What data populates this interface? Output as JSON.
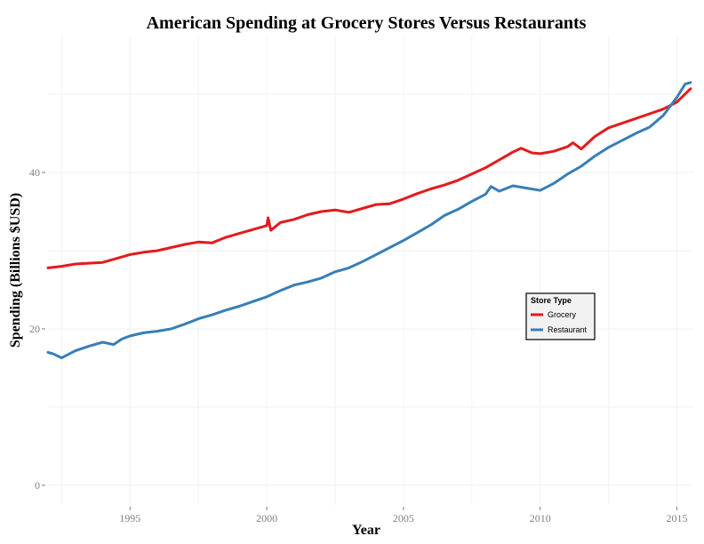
{
  "chart_data": {
    "type": "line",
    "title": "American Spending at Grocery Stores Versus Restaurants",
    "xlabel": "Year",
    "ylabel": "Spending (Billions $USD)",
    "xlim": [
      1992,
      2015.6
    ],
    "ylim": [
      -2.5,
      57.5
    ],
    "x_ticks": [
      1995,
      2000,
      2005,
      2010,
      2015
    ],
    "y_ticks": [
      0,
      20,
      40
    ],
    "grid": true,
    "legend": {
      "title": "Store Type",
      "placement": "right"
    },
    "series": [
      {
        "name": "Grocery",
        "color": "#e41a1c",
        "points": [
          [
            1992.0,
            27.8
          ],
          [
            1992.5,
            28.0
          ],
          [
            1993.0,
            28.3
          ],
          [
            1993.5,
            28.4
          ],
          [
            1994.0,
            28.5
          ],
          [
            1994.5,
            29.0
          ],
          [
            1995.0,
            29.5
          ],
          [
            1995.5,
            29.8
          ],
          [
            1996.0,
            30.0
          ],
          [
            1996.5,
            30.4
          ],
          [
            1997.0,
            30.8
          ],
          [
            1997.5,
            31.1
          ],
          [
            1998.0,
            31.0
          ],
          [
            1998.5,
            31.7
          ],
          [
            1999.0,
            32.2
          ],
          [
            1999.5,
            32.7
          ],
          [
            2000.0,
            33.2
          ],
          [
            2000.05,
            34.2
          ],
          [
            2000.15,
            32.6
          ],
          [
            2000.5,
            33.6
          ],
          [
            2001.0,
            34.0
          ],
          [
            2001.5,
            34.6
          ],
          [
            2002.0,
            35.0
          ],
          [
            2002.5,
            35.2
          ],
          [
            2003.0,
            34.9
          ],
          [
            2003.5,
            35.4
          ],
          [
            2004.0,
            35.9
          ],
          [
            2004.5,
            36.0
          ],
          [
            2005.0,
            36.6
          ],
          [
            2005.5,
            37.3
          ],
          [
            2006.0,
            37.9
          ],
          [
            2006.5,
            38.4
          ],
          [
            2007.0,
            39.0
          ],
          [
            2007.5,
            39.8
          ],
          [
            2008.0,
            40.6
          ],
          [
            2008.5,
            41.6
          ],
          [
            2009.0,
            42.6
          ],
          [
            2009.3,
            43.1
          ],
          [
            2009.7,
            42.5
          ],
          [
            2010.0,
            42.4
          ],
          [
            2010.5,
            42.7
          ],
          [
            2011.0,
            43.3
          ],
          [
            2011.2,
            43.8
          ],
          [
            2011.5,
            43.0
          ],
          [
            2012.0,
            44.6
          ],
          [
            2012.5,
            45.7
          ],
          [
            2013.0,
            46.3
          ],
          [
            2013.5,
            46.9
          ],
          [
            2014.0,
            47.5
          ],
          [
            2014.5,
            48.1
          ],
          [
            2015.0,
            49.0
          ],
          [
            2015.5,
            50.7
          ]
        ]
      },
      {
        "name": "Restaurant",
        "color": "#377eb8",
        "points": [
          [
            1992.0,
            17.0
          ],
          [
            1992.2,
            16.8
          ],
          [
            1992.5,
            16.3
          ],
          [
            1993.0,
            17.2
          ],
          [
            1993.5,
            17.8
          ],
          [
            1994.0,
            18.3
          ],
          [
            1994.4,
            18.0
          ],
          [
            1994.7,
            18.7
          ],
          [
            1995.0,
            19.1
          ],
          [
            1995.5,
            19.5
          ],
          [
            1996.0,
            19.7
          ],
          [
            1996.5,
            20.0
          ],
          [
            1997.0,
            20.6
          ],
          [
            1997.5,
            21.3
          ],
          [
            1998.0,
            21.8
          ],
          [
            1998.5,
            22.4
          ],
          [
            1999.0,
            22.9
          ],
          [
            1999.5,
            23.5
          ],
          [
            2000.0,
            24.1
          ],
          [
            2000.5,
            24.9
          ],
          [
            2001.0,
            25.6
          ],
          [
            2001.5,
            26.0
          ],
          [
            2002.0,
            26.5
          ],
          [
            2002.5,
            27.3
          ],
          [
            2003.0,
            27.8
          ],
          [
            2003.5,
            28.6
          ],
          [
            2004.0,
            29.5
          ],
          [
            2004.5,
            30.4
          ],
          [
            2005.0,
            31.3
          ],
          [
            2005.5,
            32.3
          ],
          [
            2006.0,
            33.3
          ],
          [
            2006.5,
            34.5
          ],
          [
            2007.0,
            35.3
          ],
          [
            2007.5,
            36.3
          ],
          [
            2008.0,
            37.2
          ],
          [
            2008.2,
            38.2
          ],
          [
            2008.5,
            37.6
          ],
          [
            2009.0,
            38.3
          ],
          [
            2009.5,
            38.0
          ],
          [
            2010.0,
            37.7
          ],
          [
            2010.5,
            38.6
          ],
          [
            2011.0,
            39.8
          ],
          [
            2011.5,
            40.8
          ],
          [
            2012.0,
            42.1
          ],
          [
            2012.5,
            43.2
          ],
          [
            2013.0,
            44.1
          ],
          [
            2013.5,
            45.0
          ],
          [
            2014.0,
            45.8
          ],
          [
            2014.5,
            47.3
          ],
          [
            2015.0,
            49.6
          ],
          [
            2015.3,
            51.3
          ],
          [
            2015.5,
            51.5
          ]
        ]
      }
    ]
  }
}
